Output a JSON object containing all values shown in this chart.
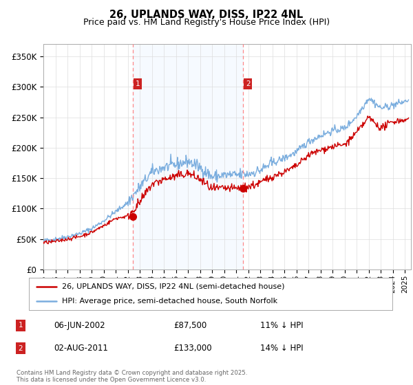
{
  "title": "26, UPLANDS WAY, DISS, IP22 4NL",
  "subtitle": "Price paid vs. HM Land Registry's House Price Index (HPI)",
  "ylabel_ticks": [
    "£0",
    "£50K",
    "£100K",
    "£150K",
    "£200K",
    "£250K",
    "£300K",
    "£350K"
  ],
  "ytick_values": [
    0,
    50000,
    100000,
    150000,
    200000,
    250000,
    300000,
    350000
  ],
  "ylim": [
    0,
    370000
  ],
  "xlim_start": 1995.0,
  "xlim_end": 2025.5,
  "sale1": {
    "date_num": 2002.44,
    "price": 87500,
    "label": "1",
    "date_str": "06-JUN-2002",
    "price_str": "£87,500",
    "pct": "11% ↓ HPI"
  },
  "sale2": {
    "date_num": 2011.58,
    "price": 133000,
    "label": "2",
    "date_str": "02-AUG-2011",
    "price_str": "£133,000",
    "pct": "14% ↓ HPI"
  },
  "legend_line1": "26, UPLANDS WAY, DISS, IP22 4NL (semi-detached house)",
  "legend_line2": "HPI: Average price, semi-detached house, South Norfolk",
  "footer": "Contains HM Land Registry data © Crown copyright and database right 2025.\nThis data is licensed under the Open Government Licence v3.0.",
  "hpi_color": "#7aadde",
  "price_color": "#cc0000",
  "dashed_color": "#ff8888",
  "annotation_box_color": "#cc2222",
  "span_color": "#ddeeff",
  "grid_color": "#dddddd",
  "hpi_nodes_t": [
    1995,
    1996,
    1997,
    1998,
    1999,
    2000,
    2001,
    2002,
    2003,
    2004,
    2005,
    2006,
    2007,
    2008,
    2009,
    2010,
    2011,
    2012,
    2013,
    2014,
    2015,
    2016,
    2017,
    2018,
    2019,
    2020,
    2021,
    2022,
    2023,
    2024,
    2025.3
  ],
  "hpi_nodes_v": [
    47000,
    50000,
    54000,
    59000,
    67000,
    80000,
    95000,
    110000,
    135000,
    160000,
    168000,
    172000,
    178000,
    168000,
    152000,
    155000,
    155000,
    157000,
    163000,
    175000,
    183000,
    193000,
    210000,
    220000,
    228000,
    232000,
    252000,
    282000,
    265000,
    270000,
    278000
  ],
  "price_nodes_t": [
    1995,
    1996,
    1997,
    1998,
    1999,
    2000,
    2001,
    2002,
    2003,
    2004,
    2005,
    2006,
    2007,
    2008,
    2009,
    2010,
    2011,
    2012,
    2013,
    2014,
    2015,
    2016,
    2017,
    2018,
    2019,
    2020,
    2021,
    2022,
    2023,
    2024,
    2025.3
  ],
  "price_nodes_v": [
    44000,
    46000,
    50000,
    54000,
    61000,
    72000,
    84000,
    87500,
    110000,
    140000,
    148000,
    153000,
    158000,
    148000,
    132000,
    133000,
    133000,
    136000,
    142000,
    153000,
    160000,
    170000,
    188000,
    196000,
    202000,
    205000,
    225000,
    250000,
    232000,
    243000,
    247000
  ]
}
